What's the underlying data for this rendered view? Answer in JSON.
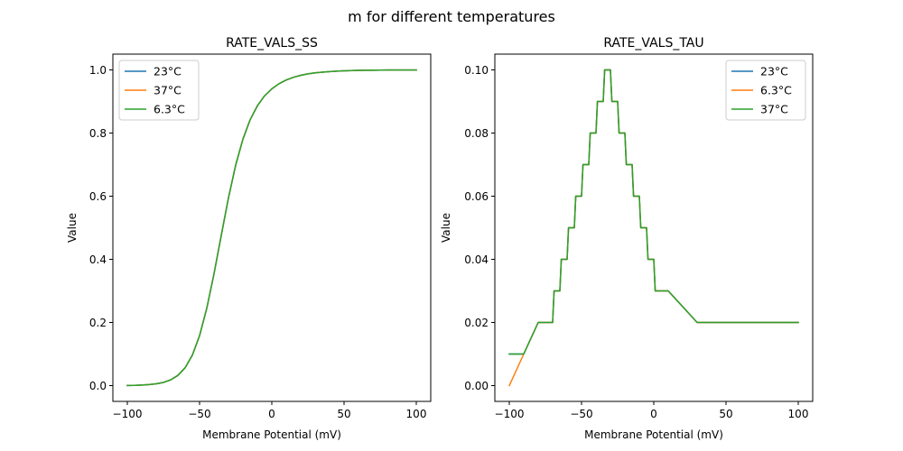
{
  "figure": {
    "suptitle": "m for different temperatures",
    "background": "#ffffff"
  },
  "chart_data": [
    {
      "type": "line",
      "title": "RATE_VALS_SS",
      "xlabel": "Membrane Potential (mV)",
      "ylabel": "Value",
      "xlim": [
        -110,
        110
      ],
      "ylim": [
        -0.05,
        1.05
      ],
      "xticks": [
        -100,
        -50,
        0,
        50,
        100
      ],
      "xtick_labels": [
        "−100",
        "−50",
        "0",
        "50",
        "100"
      ],
      "yticks": [
        0.0,
        0.2,
        0.4,
        0.6,
        0.8,
        1.0
      ],
      "ytick_labels": [
        "0.0",
        "0.2",
        "0.4",
        "0.6",
        "0.8",
        "1.0"
      ],
      "grid": false,
      "legend_position": "upper left",
      "x": [
        -100,
        -95,
        -90,
        -85,
        -80,
        -75,
        -70,
        -65,
        -60,
        -55,
        -50,
        -45,
        -40,
        -35,
        -30,
        -25,
        -20,
        -15,
        -10,
        -5,
        0,
        5,
        10,
        15,
        20,
        25,
        30,
        35,
        40,
        45,
        50,
        55,
        60,
        65,
        70,
        75,
        80,
        85,
        90,
        95,
        100
      ],
      "series": [
        {
          "name": "23°C",
          "color": "#1f77b4",
          "values": [
            0.0005,
            0.0009,
            0.0017,
            0.0031,
            0.0056,
            0.0101,
            0.0182,
            0.0323,
            0.0566,
            0.0965,
            0.1581,
            0.2451,
            0.3543,
            0.4754,
            0.5946,
            0.6986,
            0.7805,
            0.842,
            0.8861,
            0.9179,
            0.94,
            0.9563,
            0.968,
            0.9766,
            0.9829,
            0.9874,
            0.9906,
            0.993,
            0.9948,
            0.9961,
            0.9971,
            0.9978,
            0.9984,
            0.9988,
            0.9991,
            0.9993,
            0.9995,
            0.9996,
            0.9997,
            0.9998,
            0.9998
          ]
        },
        {
          "name": "37°C",
          "color": "#ff7f0e",
          "values": [
            0.0005,
            0.0009,
            0.0017,
            0.0031,
            0.0056,
            0.0101,
            0.0182,
            0.0323,
            0.0566,
            0.0965,
            0.1581,
            0.2451,
            0.3543,
            0.4754,
            0.5946,
            0.6986,
            0.7805,
            0.842,
            0.8861,
            0.9179,
            0.94,
            0.9563,
            0.968,
            0.9766,
            0.9829,
            0.9874,
            0.9906,
            0.993,
            0.9948,
            0.9961,
            0.9971,
            0.9978,
            0.9984,
            0.9988,
            0.9991,
            0.9993,
            0.9995,
            0.9996,
            0.9997,
            0.9998,
            0.9998
          ]
        },
        {
          "name": "6.3°C",
          "color": "#2ca02c",
          "values": [
            0.0005,
            0.0009,
            0.0017,
            0.0031,
            0.0056,
            0.0101,
            0.0182,
            0.0323,
            0.0566,
            0.0965,
            0.1581,
            0.2451,
            0.3543,
            0.4754,
            0.5946,
            0.6986,
            0.7805,
            0.842,
            0.8861,
            0.9179,
            0.94,
            0.9563,
            0.968,
            0.9766,
            0.9829,
            0.9874,
            0.9906,
            0.993,
            0.9948,
            0.9961,
            0.9971,
            0.9978,
            0.9984,
            0.9988,
            0.9991,
            0.9993,
            0.9995,
            0.9996,
            0.9997,
            0.9998,
            0.9998
          ]
        }
      ]
    },
    {
      "type": "line",
      "title": "RATE_VALS_TAU",
      "xlabel": "Membrane Potential (mV)",
      "ylabel": "Value",
      "xlim": [
        -110,
        110
      ],
      "ylim": [
        -0.005,
        0.105
      ],
      "xticks": [
        -100,
        -50,
        0,
        50,
        100
      ],
      "xtick_labels": [
        "−100",
        "−50",
        "0",
        "50",
        "100"
      ],
      "yticks": [
        0.0,
        0.02,
        0.04,
        0.06,
        0.08,
        0.1
      ],
      "ytick_labels": [
        "0.00",
        "0.02",
        "0.04",
        "0.06",
        "0.08",
        "0.10"
      ],
      "grid": false,
      "legend_position": "upper right",
      "series": [
        {
          "name": "23°C",
          "color": "#1f77b4",
          "x": [
            -100,
            -90,
            -80,
            -70,
            -69,
            -65,
            -64,
            -60,
            -59,
            -55,
            -54,
            -50,
            -49,
            -45,
            -44,
            -40,
            -39,
            -35,
            -34,
            -30,
            -29,
            -25,
            -24,
            -20,
            -19,
            -15,
            -14,
            -10,
            -9,
            -5,
            -4,
            0,
            1,
            10,
            30,
            50,
            60,
            100
          ],
          "values": [
            0.01,
            0.01,
            0.02,
            0.02,
            0.03,
            0.03,
            0.04,
            0.04,
            0.05,
            0.05,
            0.06,
            0.06,
            0.07,
            0.07,
            0.08,
            0.08,
            0.09,
            0.09,
            0.1,
            0.1,
            0.09,
            0.09,
            0.08,
            0.08,
            0.07,
            0.07,
            0.06,
            0.06,
            0.05,
            0.05,
            0.04,
            0.04,
            0.03,
            0.03,
            0.02,
            0.02,
            0.02,
            0.02
          ]
        },
        {
          "name": "6.3°C",
          "color": "#ff7f0e",
          "x": [
            -100,
            -90,
            -80,
            -70,
            -69,
            -65,
            -64,
            -60,
            -59,
            -55,
            -54,
            -50,
            -49,
            -45,
            -44,
            -40,
            -39,
            -35,
            -34,
            -30,
            -29,
            -25,
            -24,
            -20,
            -19,
            -15,
            -14,
            -10,
            -9,
            -5,
            -4,
            0,
            1,
            10,
            30,
            50,
            60,
            100
          ],
          "values": [
            0.0,
            0.01,
            0.02,
            0.02,
            0.03,
            0.03,
            0.04,
            0.04,
            0.05,
            0.05,
            0.06,
            0.06,
            0.07,
            0.07,
            0.08,
            0.08,
            0.09,
            0.09,
            0.1,
            0.1,
            0.09,
            0.09,
            0.08,
            0.08,
            0.07,
            0.07,
            0.06,
            0.06,
            0.05,
            0.05,
            0.04,
            0.04,
            0.03,
            0.03,
            0.02,
            0.02,
            0.02,
            0.02
          ]
        },
        {
          "name": "37°C",
          "color": "#2ca02c",
          "x": [
            -100,
            -90,
            -80,
            -70,
            -69,
            -65,
            -64,
            -60,
            -59,
            -55,
            -54,
            -50,
            -49,
            -45,
            -44,
            -40,
            -39,
            -35,
            -34,
            -30,
            -29,
            -25,
            -24,
            -20,
            -19,
            -15,
            -14,
            -10,
            -9,
            -5,
            -4,
            0,
            1,
            10,
            30,
            50,
            60,
            100
          ],
          "values": [
            0.01,
            0.01,
            0.02,
            0.02,
            0.03,
            0.03,
            0.04,
            0.04,
            0.05,
            0.05,
            0.06,
            0.06,
            0.07,
            0.07,
            0.08,
            0.08,
            0.09,
            0.09,
            0.1,
            0.1,
            0.09,
            0.09,
            0.08,
            0.08,
            0.07,
            0.07,
            0.06,
            0.06,
            0.05,
            0.05,
            0.04,
            0.04,
            0.03,
            0.03,
            0.02,
            0.02,
            0.02,
            0.02
          ]
        }
      ]
    }
  ]
}
